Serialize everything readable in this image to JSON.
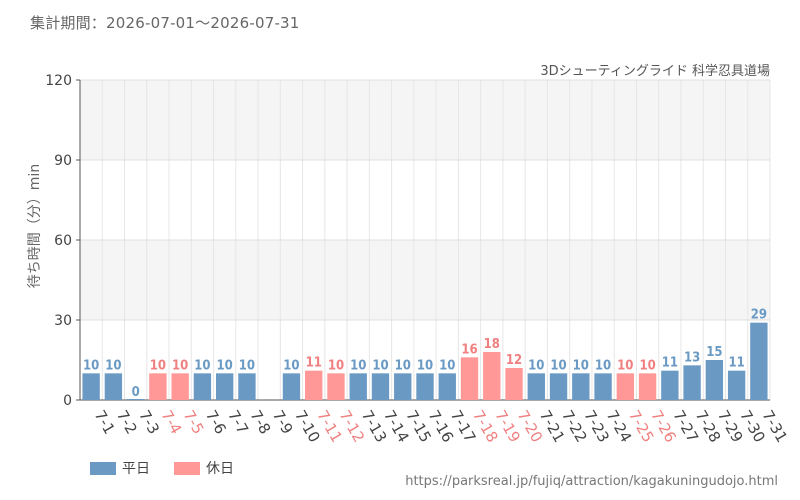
{
  "period_label": "集計期間：2026-07-01～2026-07-31",
  "attraction_name": "3Dシューティングライド 科学忍具道場",
  "source_url": "https://parksreal.jp/fujiq/attraction/kagakuningudojo.html",
  "colors": {
    "weekday": "#6a9ac4",
    "holiday": "#ff9896",
    "holiday_text": "#f08080"
  },
  "chart_data": {
    "type": "bar",
    "ylabel": "待ち時間（分）min",
    "ylim": [
      0,
      120
    ],
    "yticks": [
      0,
      30,
      60,
      90,
      120
    ],
    "grid": true,
    "legend": [
      {
        "label": "平日",
        "key": "weekday"
      },
      {
        "label": "休日",
        "key": "holiday"
      }
    ],
    "categories": [
      "7-1",
      "7-2",
      "7-3",
      "7-4",
      "7-5",
      "7-6",
      "7-7",
      "7-8",
      "7-9",
      "7-10",
      "7-11",
      "7-12",
      "7-13",
      "7-14",
      "7-15",
      "7-16",
      "7-17",
      "7-18",
      "7-19",
      "7-20",
      "7-21",
      "7-22",
      "7-23",
      "7-24",
      "7-25",
      "7-26",
      "7-27",
      "7-28",
      "7-29",
      "7-30",
      "7-31"
    ],
    "values": [
      10,
      10,
      0,
      10,
      10,
      10,
      10,
      10,
      null,
      10,
      11,
      10,
      10,
      10,
      10,
      10,
      10,
      16,
      18,
      12,
      10,
      10,
      10,
      10,
      10,
      10,
      11,
      13,
      15,
      11,
      29
    ],
    "day_type": [
      "weekday",
      "weekday",
      "weekday",
      "holiday",
      "holiday",
      "weekday",
      "weekday",
      "weekday",
      "weekday",
      "weekday",
      "holiday",
      "holiday",
      "weekday",
      "weekday",
      "weekday",
      "weekday",
      "weekday",
      "holiday",
      "holiday",
      "holiday",
      "weekday",
      "weekday",
      "weekday",
      "weekday",
      "holiday",
      "holiday",
      "weekday",
      "weekday",
      "weekday",
      "weekday",
      "weekday"
    ]
  }
}
